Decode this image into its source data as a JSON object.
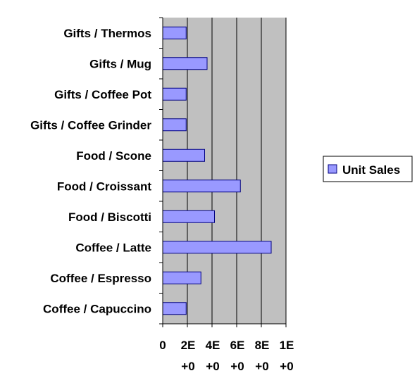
{
  "chart_data": {
    "type": "bar",
    "orientation": "horizontal",
    "categories": [
      "Gifts / Thermos",
      "Gifts / Mug",
      "Gifts / Coffee Pot",
      "Gifts / Coffee Grinder",
      "Food / Scone",
      "Food / Croissant",
      "Food / Biscotti",
      "Coffee / Latte",
      "Coffee / Espresso",
      "Coffee / Capuccino"
    ],
    "series": [
      {
        "name": "Unit Sales",
        "values": [
          190000,
          360000,
          190000,
          190000,
          340000,
          630000,
          420000,
          880000,
          310000,
          190000
        ]
      }
    ],
    "xlim": [
      0,
      1000000
    ],
    "x_ticks": [
      0,
      200000,
      400000,
      600000,
      800000,
      1000000
    ],
    "x_tick_labels": [
      [
        "0"
      ],
      [
        "2E",
        "+0"
      ],
      [
        "4E",
        "+0"
      ],
      [
        "6E",
        "+0"
      ],
      [
        "8E",
        "+0"
      ],
      [
        "1E",
        "+0"
      ]
    ],
    "grid": true,
    "legend": "right",
    "colors": {
      "plot_background": "#c0c0c0",
      "bar_fill": "#9999ff",
      "bar_stroke": "#000080",
      "gridline": "#000000"
    }
  }
}
